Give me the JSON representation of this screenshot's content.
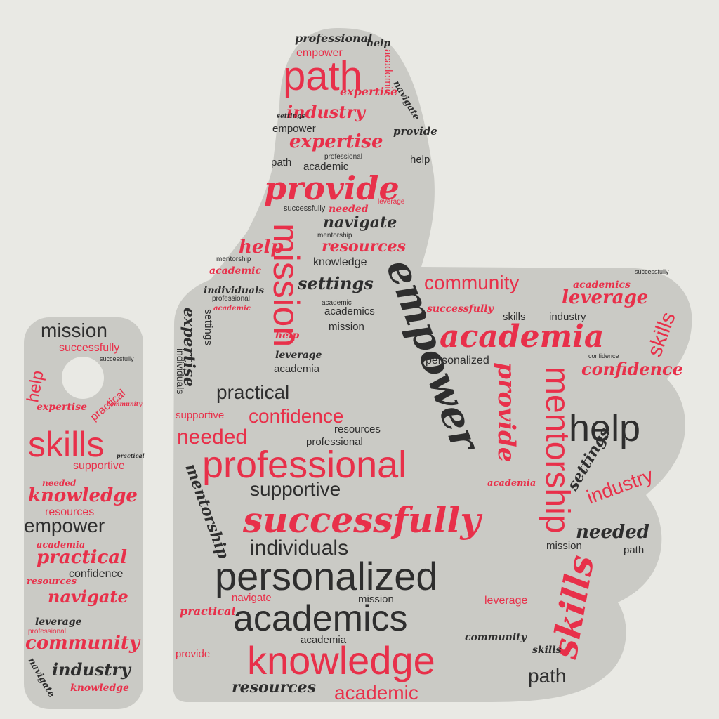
{
  "colors": {
    "background": "#e9e9e4",
    "shape_fill": "#cacac5",
    "red": "#e8304a",
    "dark": "#2e2e2e"
  },
  "words": {
    "w1": "professional",
    "w2": "help",
    "w3": "empower",
    "w4": "academic",
    "w5": "path",
    "w6": "expertise",
    "w7": "navigate",
    "w8": "industry",
    "w9": "settings",
    "w10": "provide",
    "w11": "empower",
    "w12": "expertise",
    "w13": "professional",
    "w14": "path",
    "w15": "academic",
    "w16": "help",
    "w17": "provide",
    "w18": "successfully",
    "w19": "needed",
    "w20": "leverage",
    "w21": "navigate",
    "w22": "mentorship",
    "w23": "mission",
    "w24": "help",
    "w25": "resources",
    "w26": "knowledge",
    "w27": "mentorship",
    "w28": "academic",
    "w29": "empower",
    "w30": "community",
    "w31": "academics",
    "w32": "settings",
    "w33": "individuals",
    "w34": "leverage",
    "w35": "professional",
    "w36": "academic",
    "w37": "academics",
    "w38": "academic",
    "w39": "successfully",
    "w40": "skills",
    "w41": "industry",
    "w42": "academia",
    "w43": "skills",
    "w44": "confidence",
    "w45": "mission",
    "w46": "successfully",
    "w47": "help",
    "w48": "leverage",
    "w49": "academia",
    "w50": "personalized",
    "w51": "expertise",
    "w52": "individuals",
    "w53": "settings",
    "w54": "confidence",
    "w55": "practical",
    "w56": "supportive",
    "w57": "confidence",
    "w58": "resources",
    "w59": "professional",
    "w60": "needed",
    "w61": "help",
    "w62": "professional",
    "w63": "mentorship",
    "w64": "provide",
    "w65": "mentorship",
    "w66": "supportive",
    "w67": "successfully",
    "w68": "individuals",
    "w69": "personalized",
    "w70": "academics",
    "w71": "knowledge",
    "w72": "academic",
    "w73": "resources",
    "w74": "path",
    "w75": "skills",
    "w76": "needed",
    "w77": "mission",
    "w78": "path",
    "w79": "settings",
    "w80": "academia",
    "w81": "mission",
    "w82": "navigate",
    "w83": "leverage",
    "w84": "practical",
    "w85": "provide",
    "w86": "community",
    "w87": "skills",
    "w88": "industry",
    "w89": "academia",
    "l1": "mission",
    "l2": "successfully",
    "l3": "successfully",
    "l4": "help",
    "l5": "practical",
    "l6": "expertise",
    "l7": "community",
    "l8": "skills",
    "l9": "supportive",
    "l10": "knowledge",
    "l11": "needed",
    "l12": "resources",
    "l13": "empower",
    "l14": "academia",
    "l15": "practical",
    "l16": "resources",
    "l17": "confidence",
    "l18": "navigate",
    "l19": "leverage",
    "l20": "professional",
    "l21": "community",
    "l22": "industry",
    "l23": "knowledge",
    "l24": "navigate",
    "l25": "practical"
  }
}
